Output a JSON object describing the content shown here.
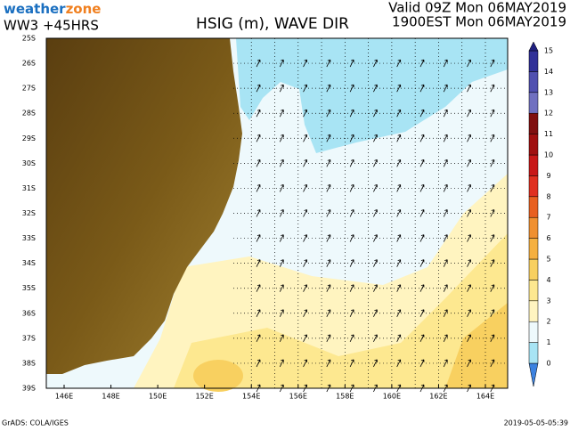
{
  "header": {
    "logo_weather": "weather",
    "logo_zone": "zone",
    "model": "WW3  +45HRS",
    "title": "HSIG (m), WAVE DIR",
    "valid_line_1": "Valid 09Z Mon 06MAY2019",
    "valid_line_2": "1900EST Mon 06MAY2019"
  },
  "map": {
    "lat_labels": [
      "25S",
      "26S",
      "27S",
      "28S",
      "29S",
      "30S",
      "31S",
      "32S",
      "33S",
      "34S",
      "35S",
      "36S",
      "37S",
      "38S",
      "39S"
    ],
    "lon_labels": [
      "146E",
      "148E",
      "150E",
      "152E",
      "154E",
      "156E",
      "158E",
      "160E",
      "162E",
      "164E"
    ]
  },
  "colorbar": {
    "levels": [
      0,
      1,
      2,
      3,
      4,
      5,
      6,
      7,
      8,
      9,
      10,
      11,
      12,
      13,
      14,
      15
    ],
    "colors": [
      "#3c82e0",
      "#a8e4f4",
      "#eef9fc",
      "#fff4c0",
      "#fde890",
      "#f8d060",
      "#f5b040",
      "#f09030",
      "#e86020",
      "#e03020",
      "#c81818",
      "#a01010",
      "#801010",
      "#7070c0",
      "#5050b0",
      "#303098",
      "#202080"
    ]
  },
  "footer": {
    "left": "GrADS: COLA/IGES",
    "right": "2019-05-05-05:39"
  }
}
